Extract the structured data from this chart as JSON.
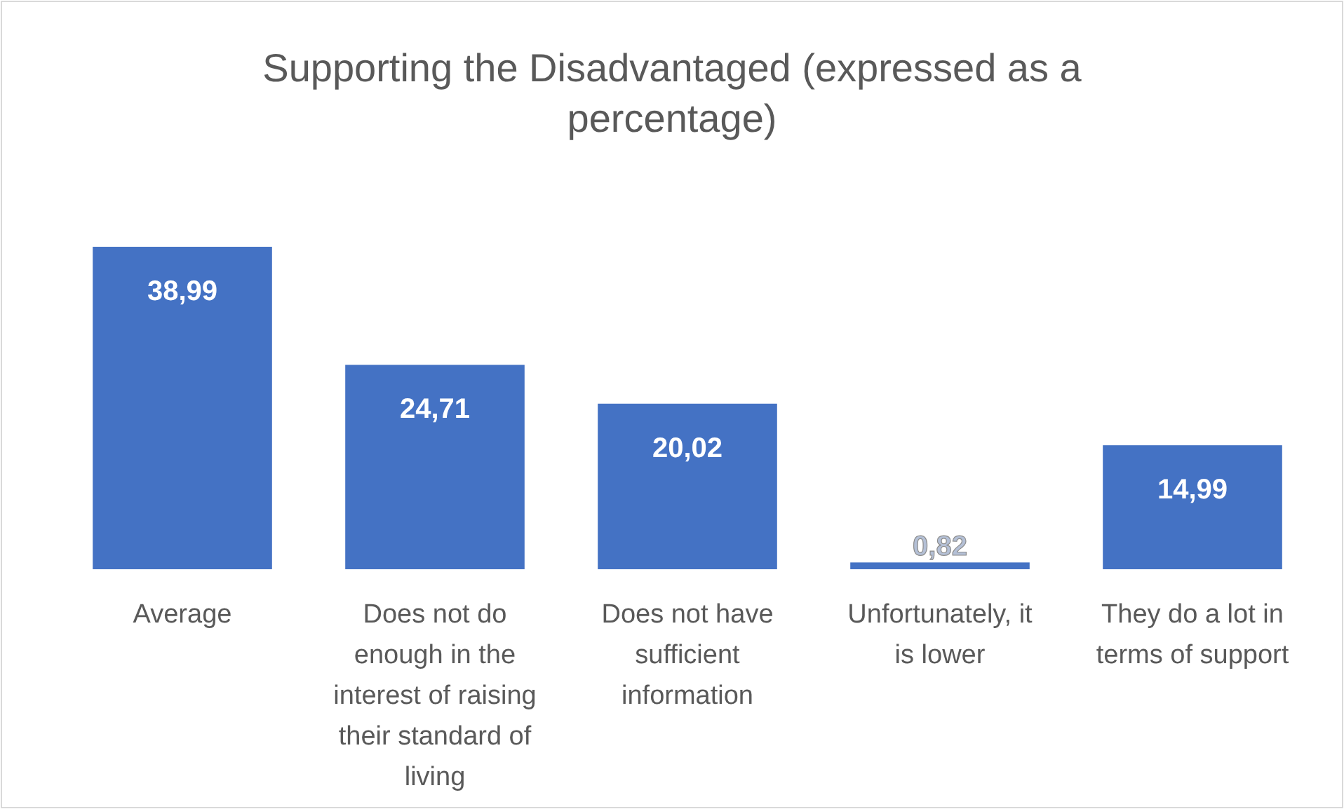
{
  "chart_data": {
    "type": "bar",
    "title": "Supporting the Disadvantaged (expressed as a percentage)",
    "categories": [
      "Average",
      "Does not do enough in the interest of raising their standard of living",
      "Does not have sufficient information",
      "Unfortunately, it is lower",
      "They do a lot in terms of support"
    ],
    "values": [
      38.99,
      24.71,
      20.02,
      0.82,
      14.99
    ],
    "value_labels": [
      "38,99",
      "24,71",
      "20,02",
      "0,82",
      "14,99"
    ],
    "color": "#4472c4"
  }
}
